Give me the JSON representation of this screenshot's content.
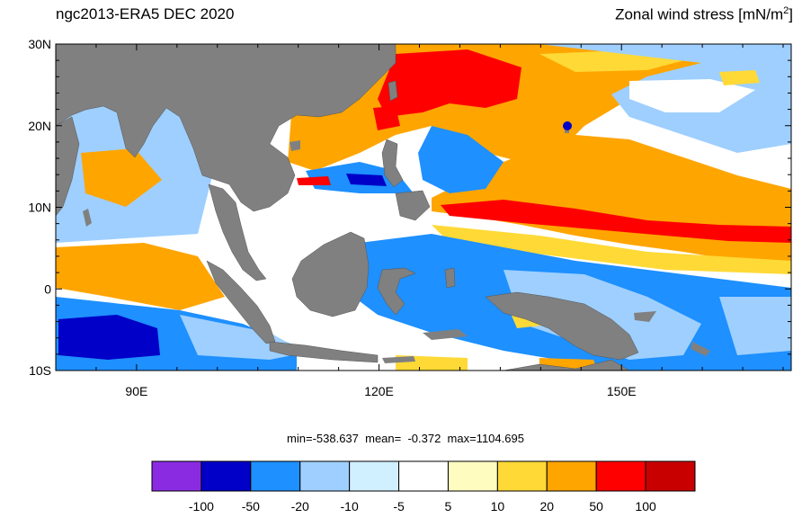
{
  "header": {
    "left_title": "ngc2013-ERA5  DEC 2020",
    "right_title_main": "Zonal wind stress [mN/m",
    "right_title_sup": "2",
    "right_title_close": "]"
  },
  "map": {
    "lon_range": [
      80,
      171
    ],
    "lat_range": [
      -10,
      30
    ],
    "lat_tick_labels": [
      "30N",
      "20N",
      "10N",
      "0",
      "10S"
    ],
    "lat_ticks": [
      30,
      20,
      10,
      0,
      -10
    ],
    "lon_tick_labels": [
      "90E",
      "120E",
      "150E"
    ],
    "lon_ticks": [
      90,
      120,
      150
    ],
    "land_color": "#808080",
    "ocean_background": "#ffffff"
  },
  "stats": {
    "text": "min=-538.637  mean=  -0.372  max=1104.695"
  },
  "colorbar": {
    "colors": [
      "#8a2be2",
      "#0000c8",
      "#1e90ff",
      "#9ecfff",
      "#d0efff",
      "#ffffff",
      "#fffcc0",
      "#ffd936",
      "#ffa500",
      "#ff0000",
      "#c80000"
    ],
    "labels": [
      "-100",
      "-50",
      "-20",
      "-10",
      "-5",
      "5",
      "10",
      "20",
      "50",
      "100"
    ]
  },
  "chart_data": {
    "type": "heatmap",
    "title": "ngc2013-ERA5  DEC 2020",
    "subtitle": "Zonal wind stress [mN/m2]",
    "region": {
      "lon": [
        80,
        171
      ],
      "lat": [
        -10,
        30
      ]
    },
    "value_summary": {
      "min": -538.637,
      "mean": -0.372,
      "max": 1104.695
    },
    "levels": [
      -100,
      -50,
      -20,
      -10,
      -5,
      5,
      10,
      20,
      50,
      100
    ]
  }
}
